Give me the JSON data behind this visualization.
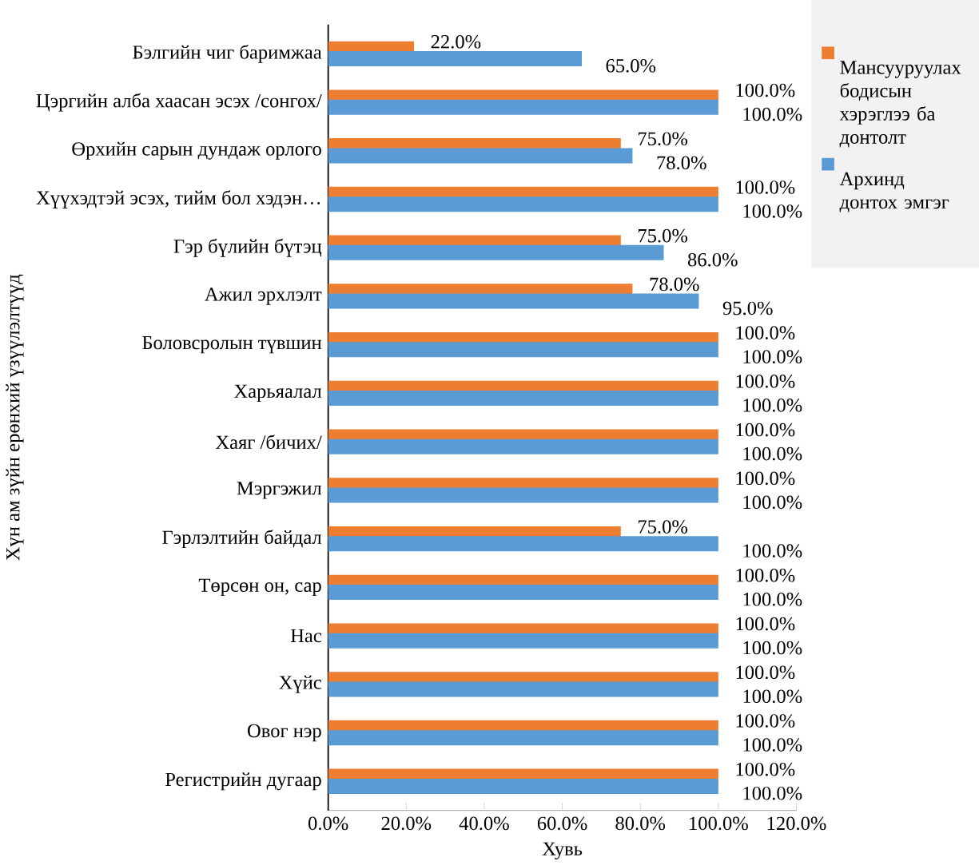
{
  "chart_data": {
    "type": "bar",
    "orientation": "horizontal",
    "xlabel": "Хувь",
    "ylabel": "Хүн ам зүйн ерөнхий үзүүлэлтүүд",
    "categories": [
      "Бэлгийн чиг баримжаа",
      "Цэргийн алба хаасан эсэх /сонгох/",
      "Өрхийн сарын дундаж орлого",
      "Хүүхэдтэй эсэх, тийм бол хэдэн…",
      "Гэр бүлийн бүтэц",
      "Ажил эрхлэлт",
      "Боловсролын түвшин",
      "Харьяалал",
      "Хаяг /бичих/",
      "Мэргэжил",
      "Гэрлэлтийн байдал",
      "Төрсөн он, сар",
      "Нас",
      "Хүйс",
      "Овог нэр",
      "Регистрийн дугаар"
    ],
    "series": [
      {
        "name": "Мансууруулах бодисын хэрэглээ ба донтолт",
        "color": "#ed7d31",
        "values": [
          22,
          100,
          75,
          100,
          75,
          78,
          100,
          100,
          100,
          100,
          75,
          100,
          100,
          100,
          100,
          100
        ],
        "value_labels": [
          "22.0%",
          "100.0%",
          "75.0%",
          "100.0%",
          "75.0%",
          "78.0%",
          "100.0%",
          "100.0%",
          "100.0%",
          "100.0%",
          "75.0%",
          "100.0%",
          "100.0%",
          "100.0%",
          "100.0%",
          "100.0%"
        ]
      },
      {
        "name": "Архинд донтох эмгэг",
        "color": "#5b9bd5",
        "values": [
          65,
          100,
          78,
          100,
          86,
          95,
          100,
          100,
          100,
          100,
          100,
          100,
          100,
          100,
          100,
          100
        ],
        "value_labels": [
          "65.0%",
          "100.0%",
          "78.0%",
          "100.0%",
          "86.0%",
          "95.0%",
          "100.0%",
          "100.0%",
          "100.0%",
          "100.0%",
          "100.0%",
          "100.0%",
          "100.0%",
          "100.0%",
          "100.0%",
          "100.0%"
        ]
      }
    ],
    "xlim": [
      0,
      120
    ],
    "xticks": [
      {
        "value": 0,
        "label": "0.0%"
      },
      {
        "value": 20,
        "label": "20.0%"
      },
      {
        "value": 40,
        "label": "40.0%"
      },
      {
        "value": 60,
        "label": "60.0%"
      },
      {
        "value": 80,
        "label": "80.0%"
      },
      {
        "value": 100,
        "label": "100.0%"
      },
      {
        "value": 120,
        "label": "120.0%"
      }
    ],
    "grid": false,
    "legend": "top right"
  }
}
